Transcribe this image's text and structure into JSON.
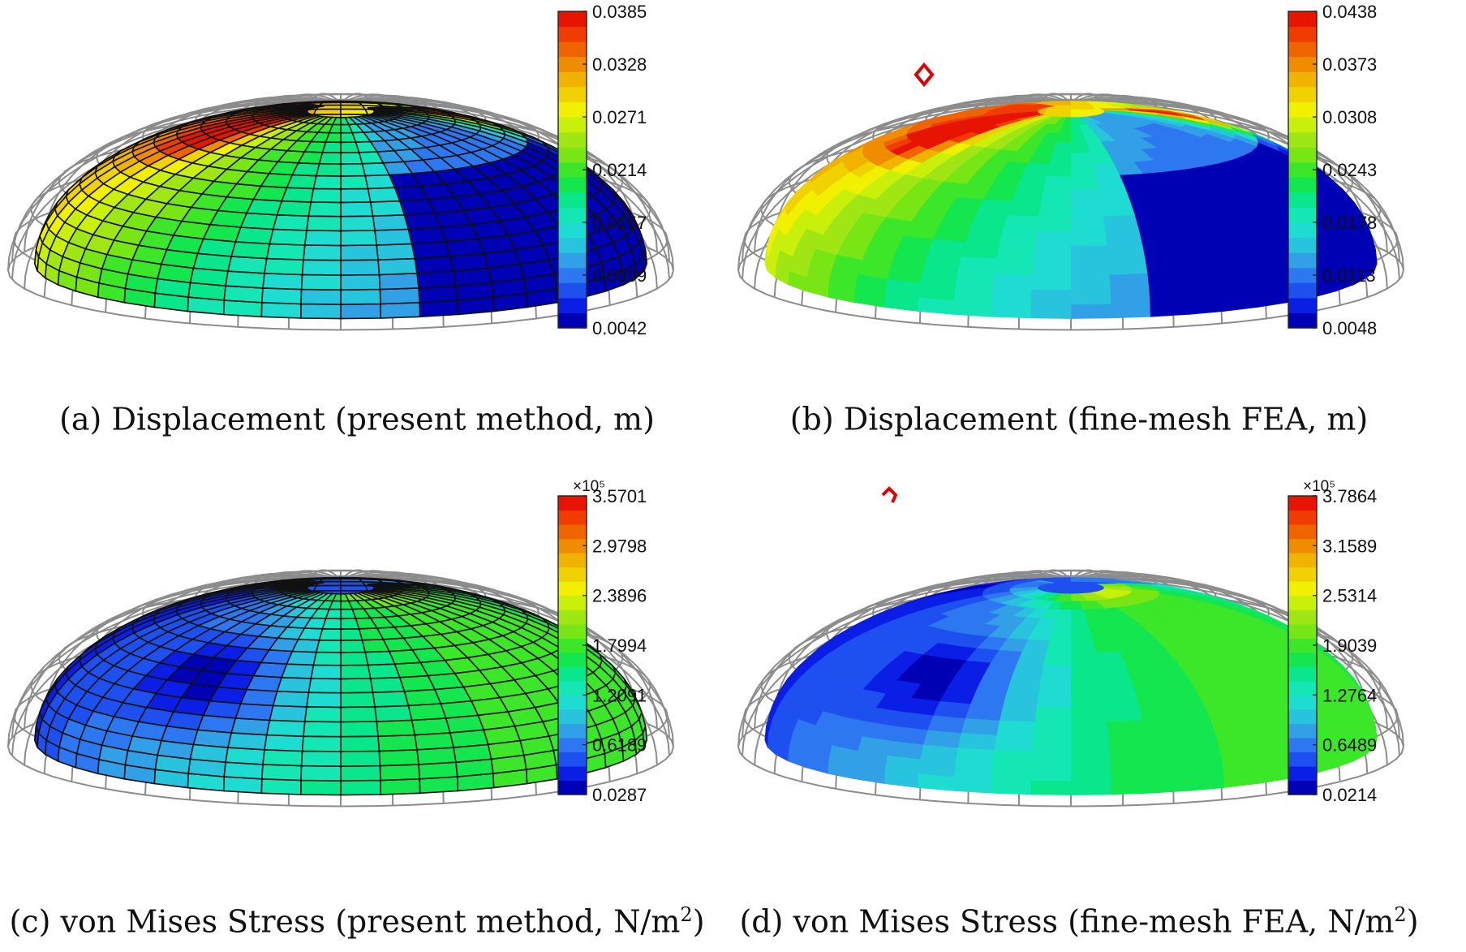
{
  "figure": {
    "panels": [
      {
        "id": "a",
        "caption": "(a) Displacement (present method, m)",
        "caption_sup": "",
        "caption_end": "",
        "exponent_label": "",
        "colorbar_ticks": [
          "0.0385",
          "0.0328",
          "0.0271",
          "0.0214",
          "0.0157",
          "0.0099",
          "0.0042"
        ],
        "mesh": "coarse",
        "marker": "none",
        "field": "disp_present"
      },
      {
        "id": "b",
        "caption": "(b) Displacement (fine-mesh FEA, m)",
        "caption_sup": "",
        "caption_end": "",
        "exponent_label": "",
        "colorbar_ticks": [
          "0.0438",
          "0.0373",
          "0.0308",
          "0.0243",
          "0.0178",
          "0.0113",
          "0.0048"
        ],
        "mesh": "none",
        "marker": "diamond",
        "field": "disp_fea"
      },
      {
        "id": "c",
        "caption": "(c) von Mises Stress (present method, N/m",
        "caption_sup": "2",
        "caption_end": ")",
        "exponent_label": "×10⁵",
        "colorbar_ticks": [
          "3.5701",
          "2.9798",
          "2.3896",
          "1.7994",
          "1.2091",
          "0.6189",
          "0.0287"
        ],
        "mesh": "coarse",
        "marker": "none",
        "field": "stress_present"
      },
      {
        "id": "d",
        "caption": "(d) von Mises Stress (fine-mesh FEA, N/m",
        "caption_sup": "2",
        "caption_end": ")",
        "exponent_label": "×10⁵",
        "colorbar_ticks": [
          "3.7864",
          "3.1589",
          "2.5314",
          "1.9039",
          "1.2764",
          "0.6489",
          "0.0214"
        ],
        "mesh": "none",
        "marker": "hook",
        "field": "stress_fea"
      }
    ],
    "colormap": [
      "#0000b4",
      "#0a1ee6",
      "#1e50f0",
      "#2d78f0",
      "#32a0e6",
      "#28c3dc",
      "#1edcd2",
      "#14e6b4",
      "#0ae68c",
      "#14e650",
      "#3ce628",
      "#78e614",
      "#a0e614",
      "#c8f00a",
      "#f0f000",
      "#f0d200",
      "#f0b400",
      "#f08c00",
      "#f06400",
      "#f03c00",
      "#e61400"
    ],
    "colors": {
      "wireframe": "#8c8c8c",
      "mesh": "#111111",
      "marker": "#e00000"
    }
  }
}
